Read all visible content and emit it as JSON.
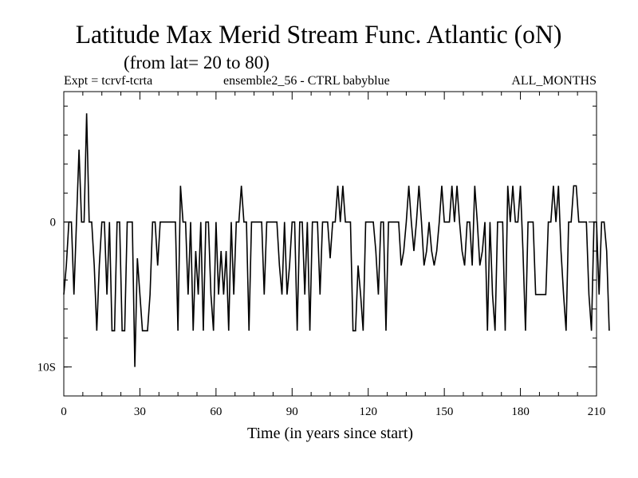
{
  "chart_data": {
    "type": "line",
    "title": "Latitude Max Merid Stream Func. Atlantic (oN)",
    "subtitle": "(from lat= 20 to 80)",
    "header_left": "Expt = tcrvf-tcrta",
    "header_center": "ensemble2_56 - CTRL babyblue",
    "header_right": "ALL_MONTHS",
    "xlabel": "Time (in years since start)",
    "ylabel": "",
    "xlim": [
      0,
      210
    ],
    "ylim": [
      -12,
      9
    ],
    "x_ticks": [
      0,
      30,
      60,
      90,
      120,
      150,
      180,
      210
    ],
    "x_tick_labels": [
      "0",
      "30",
      "60",
      "90",
      "120",
      "150",
      "180",
      "210"
    ],
    "y_ticks": [
      0,
      -10
    ],
    "y_tick_labels": [
      "0",
      "10S"
    ],
    "x_start": 0,
    "x_step": 1,
    "series": [
      {
        "name": "ensemble2_56 - CTRL",
        "values": [
          -5,
          -3,
          0,
          0,
          -5,
          0,
          5,
          0,
          0,
          7.5,
          0,
          0,
          -3,
          -7.5,
          -3,
          0,
          0,
          -5,
          0,
          -7.5,
          -7.5,
          0,
          0,
          -7.5,
          -7.5,
          0,
          0,
          0,
          -10,
          -2.5,
          -5,
          -7.5,
          -7.5,
          -7.5,
          -5,
          0,
          0,
          -3,
          0,
          0,
          0,
          0,
          0,
          0,
          0,
          -7.5,
          2.5,
          0,
          0,
          -5,
          0,
          -7.5,
          -2,
          -5,
          0,
          -7.5,
          0,
          0,
          -5,
          -7.5,
          0,
          -5,
          -2,
          -5,
          -2,
          -7.5,
          0,
          -5,
          0,
          0,
          2.5,
          0,
          0,
          -7.5,
          0,
          0,
          0,
          0,
          0,
          -5,
          0,
          0,
          0,
          0,
          0,
          -3,
          -5,
          0,
          -5,
          -3,
          0,
          0,
          -7.5,
          0,
          0,
          -5,
          0,
          -7.5,
          0,
          0,
          0,
          -5,
          0,
          0,
          0,
          -2.5,
          0,
          0,
          2.5,
          0,
          2.5,
          0,
          0,
          0,
          -7.5,
          -7.5,
          -3,
          -5,
          -7.5,
          0,
          0,
          0,
          0,
          -2,
          -5,
          0,
          0,
          -7.5,
          0,
          0,
          0,
          0,
          0,
          -3,
          -2,
          0,
          2.5,
          0,
          -2,
          0,
          2.5,
          0,
          -3,
          -2,
          0,
          -2,
          -3,
          -2,
          0,
          2.5,
          0,
          0,
          0,
          2.5,
          0,
          2.5,
          0,
          -2,
          -3,
          0,
          0,
          -3,
          2.5,
          0,
          -3,
          -2,
          0,
          -7.5,
          0,
          -5,
          -7.5,
          0,
          0,
          0,
          -7.5,
          2.5,
          0,
          2.5,
          0,
          0,
          2.5,
          -2,
          -7.5,
          0,
          0,
          0,
          -5,
          -5,
          -5,
          -5,
          -5,
          0,
          0,
          2.5,
          0,
          2.5,
          -2,
          -5,
          -7.5,
          0,
          0,
          2.5,
          2.5,
          0,
          0,
          0,
          0,
          -5,
          -7.5,
          0,
          0,
          -5,
          0,
          0,
          -2,
          -7.5
        ]
      }
    ]
  }
}
